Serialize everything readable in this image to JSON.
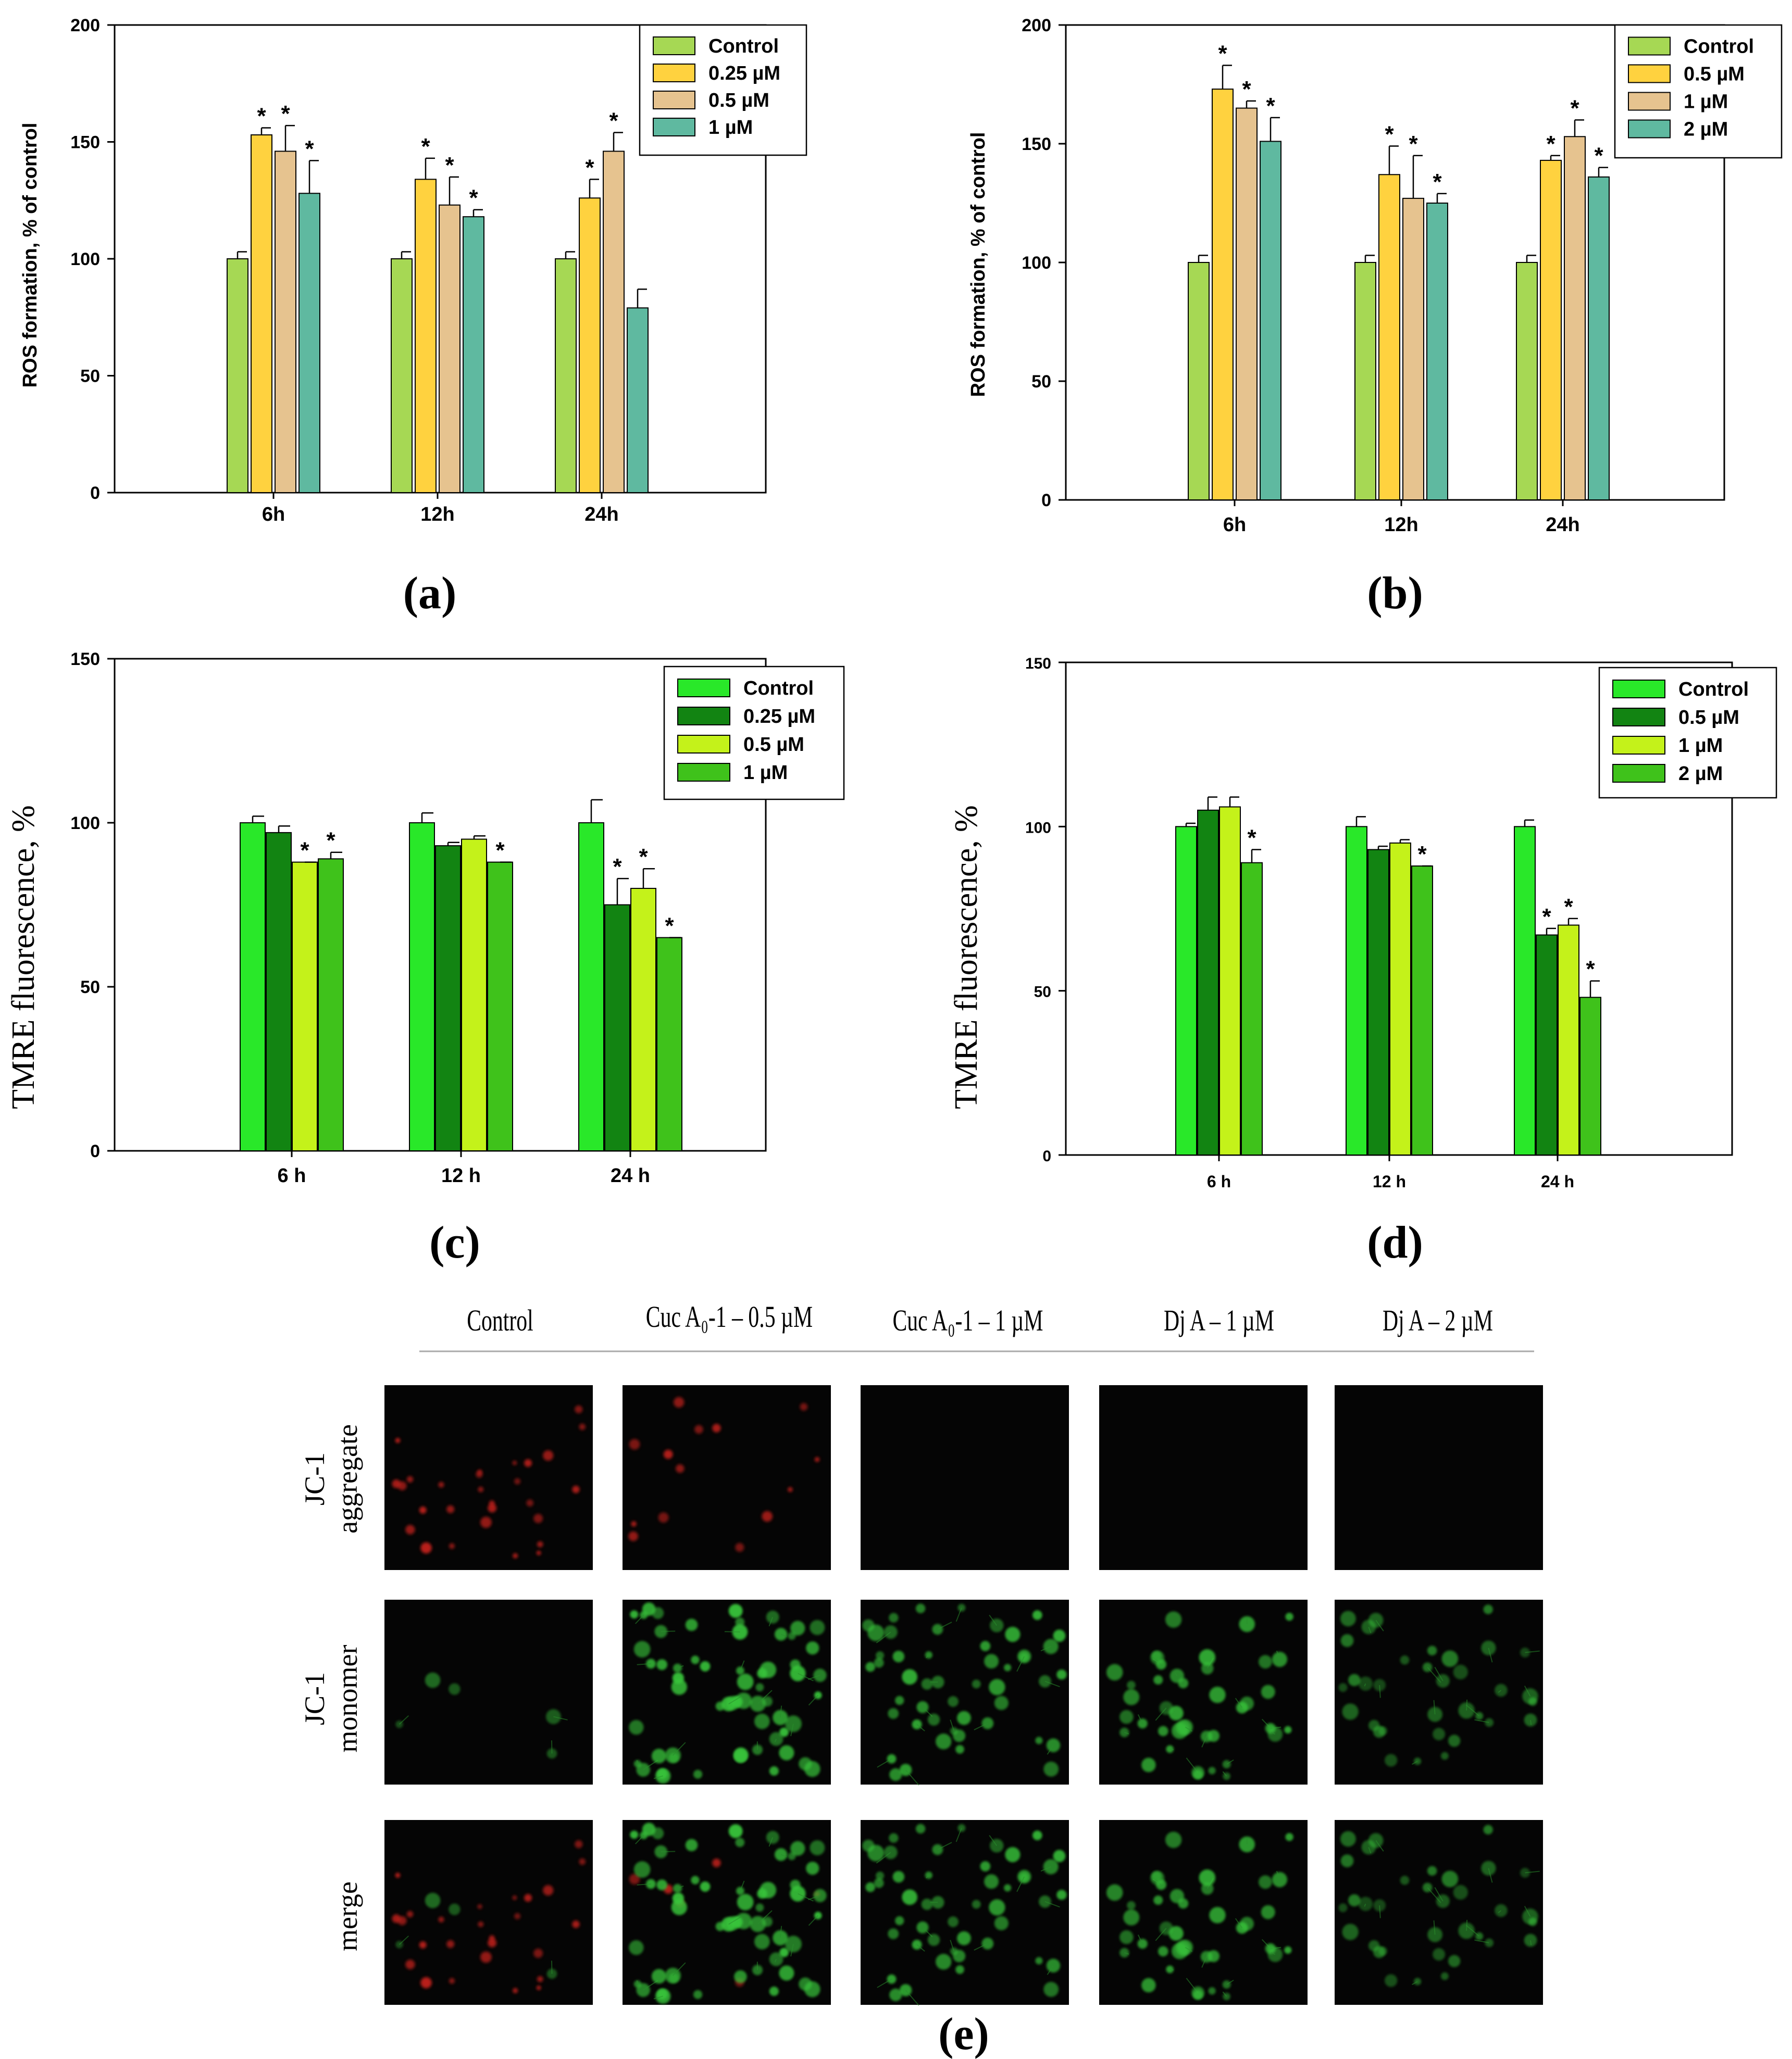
{
  "colors": {
    "ros": [
      "#a6d854",
      "#ffd23f",
      "#e6c38f",
      "#5fb9a0"
    ],
    "tmre": [
      "#29e829",
      "#128412",
      "#c4f21a",
      "#3fc21b"
    ]
  },
  "chart_data": [
    {
      "type": "bar",
      "panel": "(a)",
      "ylabel": "ROS formation, % of control",
      "xlabel": "",
      "ylim": [
        0,
        200
      ],
      "yticks": [
        0,
        50,
        100,
        150,
        200
      ],
      "categories": [
        "6h",
        "12h",
        "24h"
      ],
      "legend_position": "top-right",
      "series": [
        {
          "name": "Control",
          "values": [
            100,
            100,
            100
          ],
          "err": [
            3,
            3,
            3
          ],
          "sig": [
            false,
            false,
            false
          ]
        },
        {
          "name": "0.25 µM",
          "values": [
            153,
            134,
            126
          ],
          "err": [
            3,
            9,
            8
          ],
          "sig": [
            true,
            true,
            true
          ]
        },
        {
          "name": "0.5 µM",
          "values": [
            146,
            123,
            146
          ],
          "err": [
            11,
            12,
            8
          ],
          "sig": [
            true,
            true,
            true
          ]
        },
        {
          "name": "1 µM",
          "values": [
            128,
            118,
            79
          ],
          "err": [
            14,
            3,
            8
          ],
          "sig": [
            true,
            true,
            false
          ]
        }
      ]
    },
    {
      "type": "bar",
      "panel": "(b)",
      "ylabel": "ROS formation, % of control",
      "xlabel": "",
      "ylim": [
        0,
        200
      ],
      "yticks": [
        0,
        50,
        100,
        150,
        200
      ],
      "categories": [
        "6h",
        "12h",
        "24h"
      ],
      "legend_position": "top-right",
      "series": [
        {
          "name": "Control",
          "values": [
            100,
            100,
            100
          ],
          "err": [
            3,
            3,
            3
          ],
          "sig": [
            false,
            false,
            false
          ]
        },
        {
          "name": "0.5 µM",
          "values": [
            173,
            137,
            143
          ],
          "err": [
            10,
            12,
            2
          ],
          "sig": [
            true,
            true,
            true
          ]
        },
        {
          "name": "1 µM",
          "values": [
            165,
            127,
            153
          ],
          "err": [
            3,
            18,
            7
          ],
          "sig": [
            true,
            true,
            true
          ]
        },
        {
          "name": "2 µM",
          "values": [
            151,
            125,
            136
          ],
          "err": [
            10,
            4,
            4
          ],
          "sig": [
            true,
            true,
            true
          ]
        }
      ]
    },
    {
      "type": "bar",
      "panel": "(c)",
      "ylabel": "TMRE fluorescence, %",
      "xlabel": "",
      "ylim": [
        0,
        150
      ],
      "yticks": [
        0,
        50,
        100,
        150
      ],
      "categories": [
        "6 h",
        "12 h",
        "24 h"
      ],
      "legend_position": "top-right",
      "series": [
        {
          "name": "Control",
          "values": [
            100,
            100,
            100
          ],
          "err": [
            2,
            3,
            7
          ],
          "sig": [
            false,
            false,
            false
          ]
        },
        {
          "name": "0.25 µM",
          "values": [
            97,
            93,
            75
          ],
          "err": [
            2,
            1,
            8
          ],
          "sig": [
            false,
            false,
            true
          ]
        },
        {
          "name": "0.5 µM",
          "values": [
            88,
            95,
            80
          ],
          "err": [
            0,
            1,
            6
          ],
          "sig": [
            true,
            false,
            true
          ]
        },
        {
          "name": "1 µM",
          "values": [
            89,
            88,
            65
          ],
          "err": [
            2,
            0,
            0
          ],
          "sig": [
            true,
            true,
            true
          ]
        }
      ]
    },
    {
      "type": "bar",
      "panel": "(d)",
      "ylabel": "TMRE fluorescence, %",
      "xlabel": "",
      "ylim": [
        0,
        150
      ],
      "yticks": [
        0,
        50,
        100,
        150
      ],
      "categories": [
        "6 h",
        "12 h",
        "24 h"
      ],
      "legend_position": "top-right",
      "series": [
        {
          "name": "Control",
          "values": [
            100,
            100,
            100
          ],
          "err": [
            1,
            3,
            2
          ],
          "sig": [
            false,
            false,
            false
          ]
        },
        {
          "name": "0.5 µM",
          "values": [
            105,
            93,
            67
          ],
          "err": [
            4,
            1,
            2
          ],
          "sig": [
            false,
            false,
            true
          ]
        },
        {
          "name": "1 µM",
          "values": [
            106,
            95,
            70
          ],
          "err": [
            3,
            1,
            2
          ],
          "sig": [
            false,
            false,
            true
          ]
        },
        {
          "name": "2 µM",
          "values": [
            89,
            88,
            48
          ],
          "err": [
            4,
            0,
            5
          ],
          "sig": [
            true,
            true,
            true
          ]
        }
      ]
    }
  ],
  "microscopy": {
    "panel": "(e)",
    "columns": [
      "Control",
      "Cuc A₀-1 – 0.5 µM",
      "Cuc A₀-1 – 1 µM",
      "Dj A – 1 µM",
      "Dj A – 2 µM"
    ],
    "rows": [
      {
        "line1": "JC-1",
        "line2": "aggregate"
      },
      {
        "line1": "JC-1",
        "line2": "monomer"
      },
      {
        "line1": "",
        "line2": "merge"
      }
    ]
  }
}
